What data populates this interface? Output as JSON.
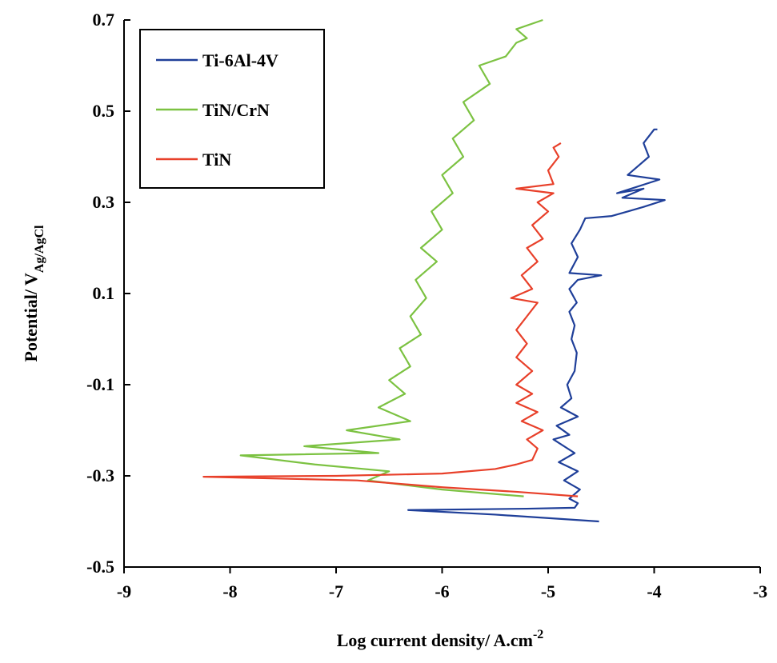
{
  "chart_data": {
    "type": "line",
    "xlabel": {
      "text": "Log current density/ A.cm",
      "superscript": "-2"
    },
    "ylabel": {
      "text": "Potential/ V",
      "subscript": "Ag/AgCl"
    },
    "xlim": [
      -9,
      -3
    ],
    "xticks": [
      -9,
      -8,
      -7,
      -6,
      -5,
      -4,
      -3
    ],
    "ylim": [
      -0.5,
      0.7
    ],
    "yticks": [
      -0.5,
      -0.3,
      -0.1,
      0.1,
      0.3,
      0.5,
      0.7
    ],
    "legend": "upper left",
    "series": [
      {
        "name": "Ti-6Al-4V",
        "color": "#1f3f99",
        "x": [
          -4.52,
          -5.5,
          -6.32,
          -5.2,
          -4.75,
          -4.72,
          -4.8,
          -4.7,
          -4.85,
          -4.72,
          -4.9,
          -4.75,
          -4.95,
          -4.8,
          -4.92,
          -4.72,
          -4.88,
          -4.78,
          -4.82,
          -4.75,
          -4.73,
          -4.78,
          -4.75,
          -4.8,
          -4.73,
          -4.8,
          -4.72,
          -4.5,
          -4.8,
          -4.72,
          -4.78,
          -4.7,
          -4.65,
          -4.4,
          -4.25,
          -4.1,
          -3.9,
          -4.3,
          -4.1,
          -4.35,
          -3.95,
          -4.25,
          -4.15,
          -4.05,
          -4.1,
          -4.0,
          -3.97
        ],
        "values": [
          -0.4,
          -0.385,
          -0.375,
          -0.372,
          -0.37,
          -0.36,
          -0.35,
          -0.33,
          -0.31,
          -0.29,
          -0.27,
          -0.25,
          -0.22,
          -0.21,
          -0.19,
          -0.17,
          -0.15,
          -0.13,
          -0.1,
          -0.07,
          -0.03,
          0.0,
          0.03,
          0.06,
          0.08,
          0.11,
          0.13,
          0.14,
          0.145,
          0.18,
          0.21,
          0.24,
          0.265,
          0.27,
          0.28,
          0.29,
          0.305,
          0.31,
          0.33,
          0.32,
          0.35,
          0.36,
          0.38,
          0.4,
          0.43,
          0.46,
          0.46
        ]
      },
      {
        "name": "TiN/CrN",
        "color": "#7cc242",
        "x": [
          -5.23,
          -6.0,
          -6.7,
          -6.5,
          -7.2,
          -7.9,
          -6.6,
          -7.3,
          -6.4,
          -6.9,
          -6.3,
          -6.6,
          -6.35,
          -6.5,
          -6.3,
          -6.4,
          -6.2,
          -6.3,
          -6.15,
          -6.25,
          -6.05,
          -6.2,
          -6.0,
          -6.1,
          -5.9,
          -6.0,
          -5.8,
          -5.9,
          -5.7,
          -5.8,
          -5.55,
          -5.65,
          -5.4,
          -5.3,
          -5.2,
          -5.3,
          -5.05
        ],
        "values": [
          -0.345,
          -0.33,
          -0.31,
          -0.29,
          -0.275,
          -0.255,
          -0.25,
          -0.235,
          -0.22,
          -0.2,
          -0.18,
          -0.15,
          -0.12,
          -0.09,
          -0.06,
          -0.02,
          0.01,
          0.05,
          0.09,
          0.13,
          0.17,
          0.2,
          0.24,
          0.28,
          0.32,
          0.36,
          0.4,
          0.44,
          0.48,
          0.52,
          0.56,
          0.6,
          0.62,
          0.65,
          0.66,
          0.68,
          0.7
        ]
      },
      {
        "name": "TiN",
        "color": "#e8402a",
        "x": [
          -4.72,
          -5.3,
          -6.0,
          -6.8,
          -8.25,
          -7.0,
          -6.0,
          -5.5,
          -5.3,
          -5.15,
          -5.1,
          -5.2,
          -5.05,
          -5.25,
          -5.1,
          -5.3,
          -5.15,
          -5.3,
          -5.15,
          -5.3,
          -5.2,
          -5.3,
          -5.2,
          -5.1,
          -5.35,
          -5.15,
          -5.25,
          -5.1,
          -5.2,
          -5.05,
          -5.15,
          -5.0,
          -5.1,
          -4.95,
          -5.3,
          -4.95,
          -5.0,
          -4.9,
          -4.95,
          -4.88
        ],
        "values": [
          -0.345,
          -0.335,
          -0.325,
          -0.31,
          -0.302,
          -0.3,
          -0.295,
          -0.285,
          -0.275,
          -0.265,
          -0.24,
          -0.22,
          -0.2,
          -0.18,
          -0.16,
          -0.14,
          -0.12,
          -0.1,
          -0.07,
          -0.04,
          -0.01,
          0.02,
          0.05,
          0.08,
          0.09,
          0.11,
          0.14,
          0.17,
          0.2,
          0.22,
          0.25,
          0.28,
          0.3,
          0.32,
          0.33,
          0.34,
          0.37,
          0.4,
          0.42,
          0.43
        ]
      }
    ]
  }
}
